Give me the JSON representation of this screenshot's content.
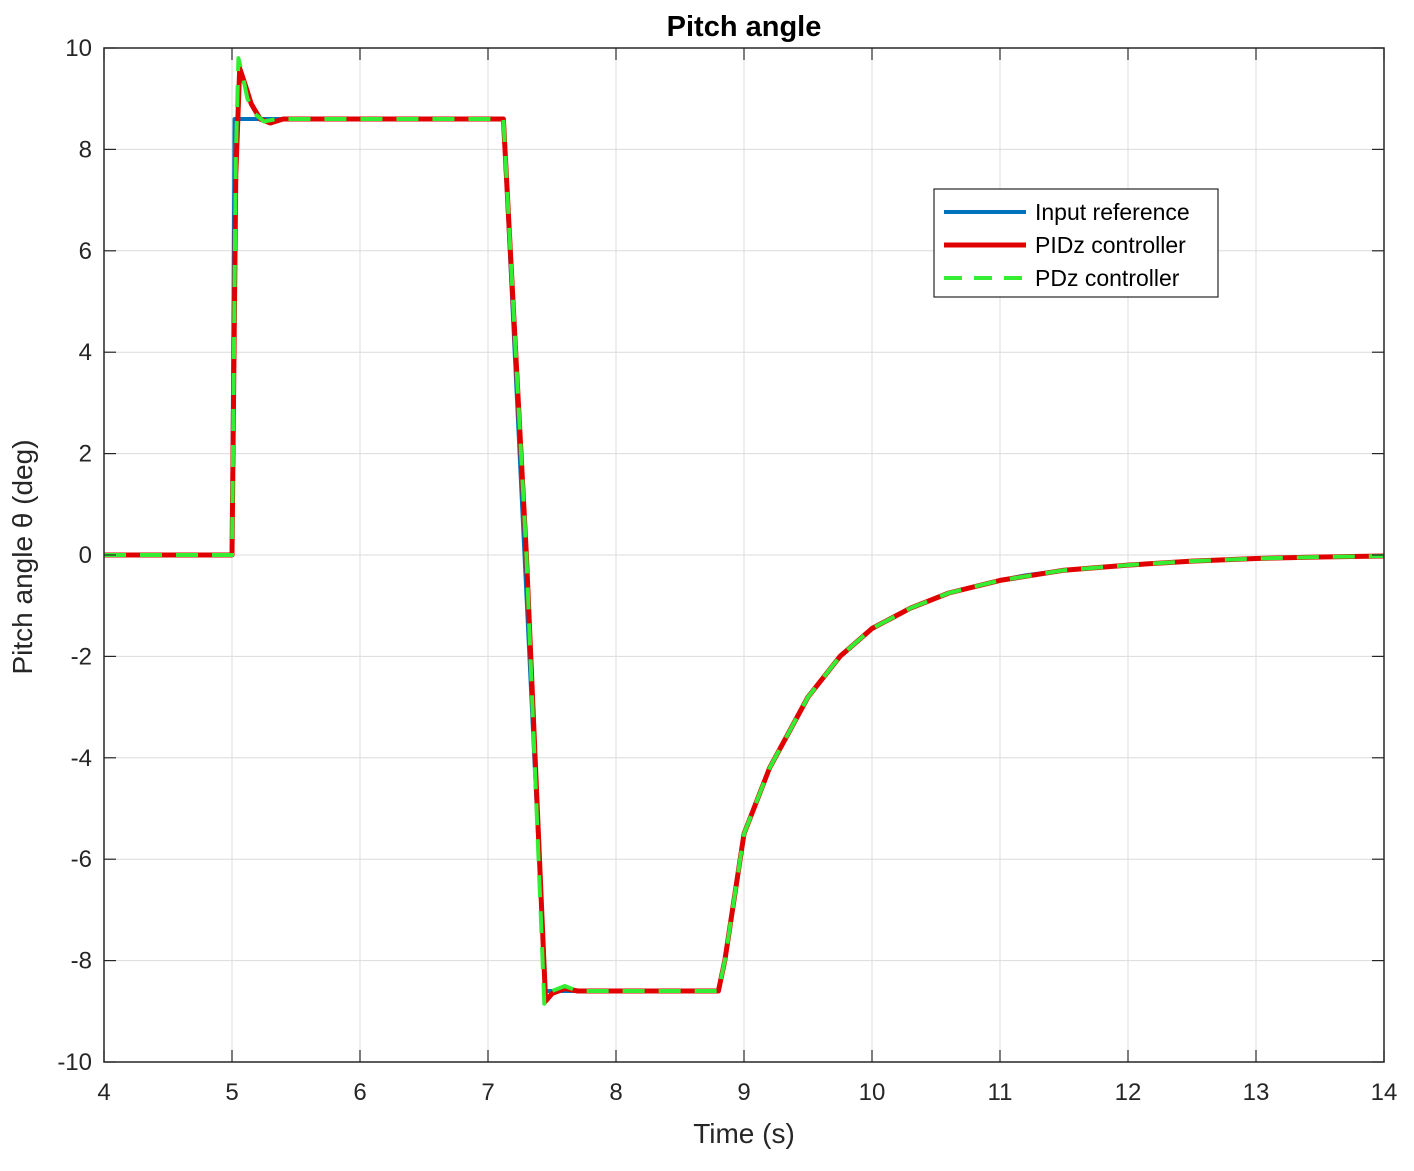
{
  "chart_data": {
    "type": "line",
    "title": "Pitch angle",
    "xlabel": "Time (s)",
    "ylabel": "Pitch angle θ (deg)",
    "xlim": [
      4,
      14
    ],
    "ylim": [
      -10,
      10
    ],
    "xticks": [
      4,
      5,
      6,
      7,
      8,
      9,
      10,
      11,
      12,
      13,
      14
    ],
    "yticks": [
      -10,
      -8,
      -6,
      -4,
      -2,
      0,
      2,
      4,
      6,
      8,
      10
    ],
    "xtick_labels": [
      "4",
      "5",
      "6",
      "7",
      "8",
      "9",
      "10",
      "11",
      "12",
      "13",
      "14"
    ],
    "ytick_labels": [
      "-10",
      "-8",
      "-6",
      "-4",
      "-2",
      "0",
      "2",
      "4",
      "6",
      "8",
      "10"
    ],
    "grid": true,
    "legend_position": "upper right",
    "series": [
      {
        "name": "Input reference",
        "color": "#0072BD",
        "style": "solid",
        "x": [
          4,
          5.0,
          5.02,
          7.12,
          7.45,
          8.8,
          8.85,
          9.0,
          9.2,
          9.5,
          9.75,
          10.0,
          10.3,
          10.6,
          11.0,
          11.2,
          11.5,
          12.0,
          12.5,
          13.0,
          13.5,
          14.0
        ],
        "y": [
          0,
          0,
          8.6,
          8.6,
          -8.6,
          -8.6,
          -8.0,
          -5.5,
          -4.2,
          -2.8,
          -2.0,
          -1.45,
          -1.05,
          -0.75,
          -0.5,
          -0.4,
          -0.3,
          -0.2,
          -0.12,
          -0.07,
          -0.04,
          -0.02
        ]
      },
      {
        "name": "PIDz controller",
        "color": "#E00000",
        "style": "solid",
        "x": [
          4,
          5.0,
          5.03,
          5.06,
          5.1,
          5.15,
          5.22,
          5.3,
          5.4,
          7.12,
          7.3,
          7.45,
          7.5,
          7.6,
          7.7,
          8.8,
          8.85,
          9.0,
          9.2,
          9.5,
          9.75,
          10.0,
          10.3,
          10.6,
          11.0,
          11.5,
          12.0,
          12.5,
          13.0,
          13.5,
          14.0
        ],
        "y": [
          0,
          0,
          7.5,
          9.6,
          9.3,
          8.9,
          8.6,
          8.52,
          8.6,
          8.6,
          0.0,
          -8.8,
          -8.65,
          -8.55,
          -8.6,
          -8.6,
          -8.0,
          -5.5,
          -4.2,
          -2.8,
          -2.0,
          -1.45,
          -1.05,
          -0.75,
          -0.5,
          -0.3,
          -0.2,
          -0.12,
          -0.07,
          -0.04,
          -0.02
        ]
      },
      {
        "name": "PDz controller",
        "color": "#33EE33",
        "style": "dashed",
        "x": [
          4,
          5.0,
          5.03,
          5.05,
          5.08,
          5.12,
          5.18,
          5.25,
          5.35,
          7.12,
          7.3,
          7.44,
          7.5,
          7.6,
          7.7,
          8.8,
          8.85,
          9.0,
          9.2,
          9.5,
          9.75,
          10.0,
          10.3,
          10.6,
          11.0,
          11.5,
          12.0,
          12.5,
          13.0,
          13.5,
          14.0
        ],
        "y": [
          0,
          0,
          7.8,
          9.8,
          9.5,
          9.0,
          8.7,
          8.55,
          8.6,
          8.6,
          0.0,
          -8.85,
          -8.6,
          -8.5,
          -8.6,
          -8.6,
          -8.0,
          -5.5,
          -4.2,
          -2.8,
          -2.0,
          -1.45,
          -1.05,
          -0.75,
          -0.5,
          -0.3,
          -0.2,
          -0.12,
          -0.07,
          -0.04,
          -0.02
        ]
      }
    ]
  }
}
